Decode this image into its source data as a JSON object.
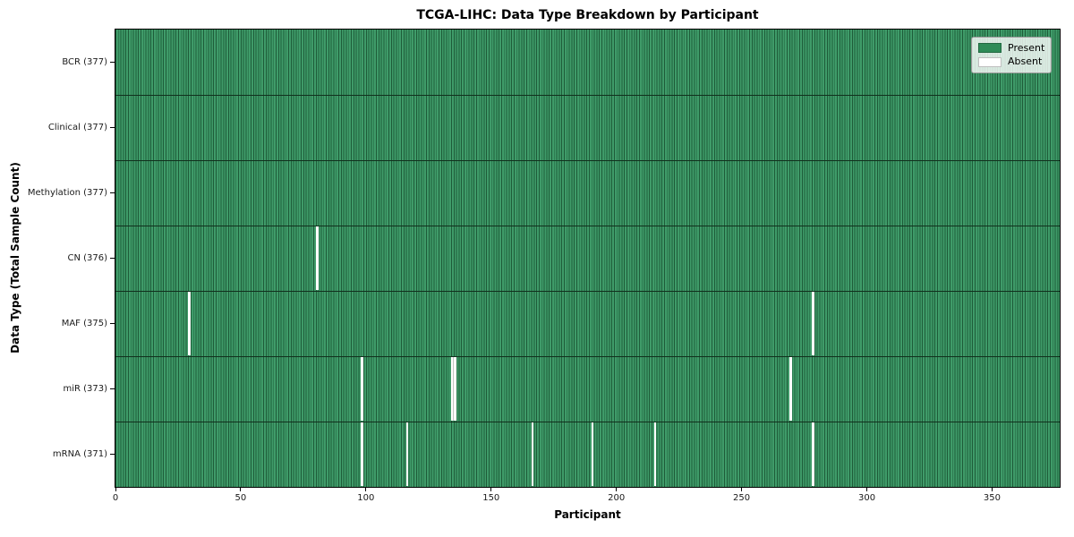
{
  "title": "TCGA-LIHC: Data Type Breakdown by Participant",
  "chart_data": {
    "type": "heatmap",
    "title": "TCGA-LIHC: Data Type Breakdown by Participant",
    "xlabel": "Participant",
    "ylabel": "Data Type (Total Sample Count)",
    "n_participants": 377,
    "xlim": [
      0,
      377
    ],
    "x_ticks": [
      0,
      50,
      100,
      150,
      200,
      250,
      300,
      350
    ],
    "legend_position": "upper right",
    "grid": false,
    "legend": [
      {
        "label": "Present",
        "color": "#2e8b57"
      },
      {
        "label": "Absent",
        "color": "#ffffff"
      }
    ],
    "rows": [
      {
        "label": "BCR (377)",
        "data_type": "BCR",
        "total_samples": 377,
        "absent_participants": []
      },
      {
        "label": "Clinical (377)",
        "data_type": "Clinical",
        "total_samples": 377,
        "absent_participants": []
      },
      {
        "label": "Methylation (377)",
        "data_type": "Methylation",
        "total_samples": 377,
        "absent_participants": []
      },
      {
        "label": "CN (376)",
        "data_type": "CN",
        "total_samples": 376,
        "absent_participants": [
          80
        ]
      },
      {
        "label": "MAF (375)",
        "data_type": "MAF",
        "total_samples": 375,
        "absent_participants": [
          29,
          278
        ]
      },
      {
        "label": "miR (373)",
        "data_type": "miR",
        "total_samples": 373,
        "absent_participants": [
          98,
          134,
          135,
          269
        ]
      },
      {
        "label": "mRNA (371)",
        "data_type": "mRNA",
        "total_samples": 371,
        "absent_participants": [
          98,
          116,
          166,
          190,
          215,
          278
        ]
      }
    ],
    "colors": {
      "present": "#2e8b57",
      "present_stripe_light": "#3f9b69",
      "present_stripe_dark": "#1e5c39",
      "absent": "#ffffff",
      "row_divider": "#11301d"
    }
  }
}
